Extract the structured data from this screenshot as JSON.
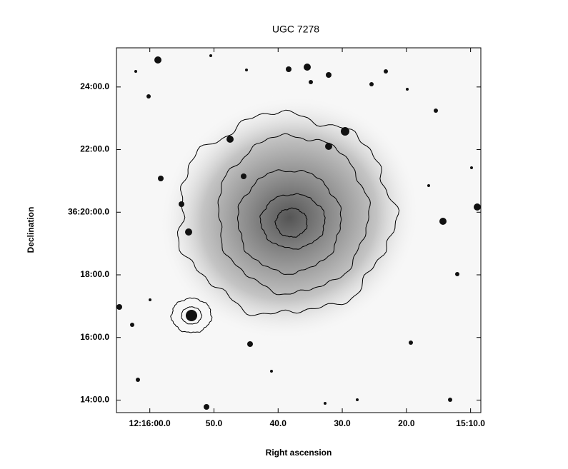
{
  "chart_data": {
    "type": "image",
    "title": "UGC 7278",
    "xlabel": "Right ascension",
    "ylabel": "Declination",
    "xlim": [
      65.2,
      8.4
    ],
    "xticks": [
      {
        "value": 60,
        "label": "12:16:00.0"
      },
      {
        "value": 50,
        "label": "50.0"
      },
      {
        "value": 40,
        "label": "40.0"
      },
      {
        "value": 30,
        "label": "30.0"
      },
      {
        "value": 20,
        "label": "20.0"
      },
      {
        "value": 10,
        "label": "15:10.0"
      }
    ],
    "ylim": [
      13.6,
      25.25
    ],
    "yticks": [
      {
        "value": 24,
        "label": "24:00.0"
      },
      {
        "value": 22,
        "label": "22:00.0"
      },
      {
        "value": 20,
        "label": "36:20:00.0"
      },
      {
        "value": 18,
        "label": "18:00.0"
      },
      {
        "value": 16,
        "label": "16:00.0"
      },
      {
        "value": 14,
        "label": "14:00.0"
      }
    ],
    "grid": false
  }
}
